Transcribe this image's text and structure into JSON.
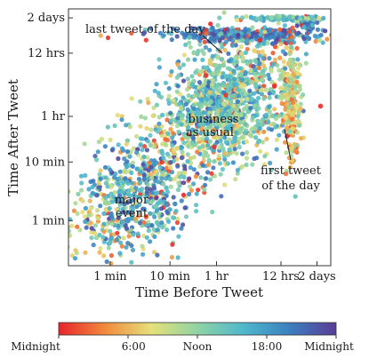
{
  "chart_data": {
    "type": "scatter",
    "xlabel": "Time Before Tweet",
    "ylabel": "Time After Tweet",
    "scale": "log",
    "units": "minutes",
    "xlim": [
      0.2,
      4900
    ],
    "ylim": [
      0.17,
      4100
    ],
    "x_ticks": [
      {
        "value": 1,
        "label": "1 min"
      },
      {
        "value": 10,
        "label": "10 min"
      },
      {
        "value": 60,
        "label": "1 hr"
      },
      {
        "value": 720,
        "label": "12 hrs"
      },
      {
        "value": 2880,
        "label": "2 days"
      }
    ],
    "y_ticks": [
      {
        "value": 1,
        "label": "1 min"
      },
      {
        "value": 10,
        "label": "10 min"
      },
      {
        "value": 60,
        "label": "1 hr"
      },
      {
        "value": 720,
        "label": "12 hrs"
      },
      {
        "value": 2880,
        "label": "2 days"
      }
    ],
    "annotations": [
      {
        "text": "last tweet of the day"
      },
      {
        "text": "business"
      },
      {
        "text": "as usual"
      },
      {
        "text": "first tweet"
      },
      {
        "text": "of the day"
      },
      {
        "text": "major"
      },
      {
        "text": "event"
      }
    ],
    "colorbar": {
      "labels": [
        "Midnight",
        "6:00",
        "Noon",
        "18:00",
        "Midnight"
      ],
      "colors": [
        "#e8232a",
        "#f08a3c",
        "#e6e07a",
        "#8fd3a3",
        "#4fb8cc",
        "#3b7fbf",
        "#5a3c96"
      ]
    },
    "clusters": [
      {
        "name": "major event",
        "x_center": 3,
        "y_center": 3,
        "spread": 0.45,
        "points": 260,
        "hour_mean": 17.5
      },
      {
        "name": "business as usual",
        "x_center": 80,
        "y_center": 90,
        "spread": 0.5,
        "points": 700,
        "hour_mean": 14
      },
      {
        "name": "last tweet of the day",
        "x_center": 200,
        "y_center": 1500,
        "spread": 0.35,
        "points": 320,
        "hour_mean": 20
      },
      {
        "name": "first tweet of the day",
        "x_center": 1100,
        "y_center": 110,
        "spread": 0.3,
        "points": 260,
        "hour_mean": 7.5
      }
    ]
  }
}
